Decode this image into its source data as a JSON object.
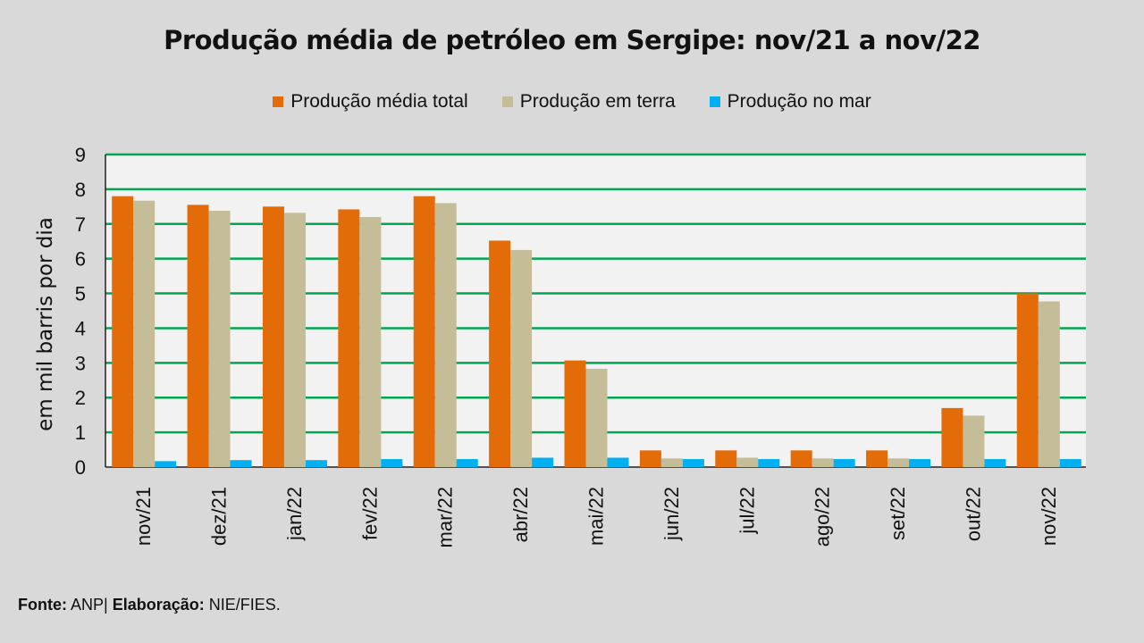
{
  "chart_data": {
    "type": "bar",
    "title": "Produção média de petróleo em Sergipe:  nov/21 a nov/22",
    "ylabel": "em mil barris por dia",
    "xlabel": "",
    "ylim": [
      0,
      9
    ],
    "yticks": [
      0,
      1,
      2,
      3,
      4,
      5,
      6,
      7,
      8,
      9
    ],
    "grid": true,
    "legend_position": "top",
    "categories": [
      "nov/21",
      "dez/21",
      "jan/22",
      "fev/22",
      "mar/22",
      "abr/22",
      "mai/22",
      "jun/22",
      "jul/22",
      "ago/22",
      "set/22",
      "out/22",
      "nov/22"
    ],
    "series": [
      {
        "name": "Produção média total",
        "color": "#e36c09",
        "values": [
          7.8,
          7.55,
          7.5,
          7.42,
          7.8,
          6.52,
          3.07,
          0.48,
          0.48,
          0.48,
          0.48,
          1.7,
          5.0
        ]
      },
      {
        "name": "Produção em terra",
        "color": "#c4bd97",
        "values": [
          7.67,
          7.38,
          7.32,
          7.2,
          7.6,
          6.25,
          2.83,
          0.25,
          0.27,
          0.25,
          0.25,
          1.48,
          4.77
        ]
      },
      {
        "name": "Produção no mar",
        "color": "#00b0f0",
        "values": [
          0.17,
          0.2,
          0.2,
          0.23,
          0.23,
          0.27,
          0.27,
          0.23,
          0.23,
          0.23,
          0.23,
          0.23,
          0.23
        ]
      }
    ]
  },
  "colors": {
    "gridline": "#00a651",
    "plot_background": "#f2f2f2",
    "page_background": "#d9d9d9"
  },
  "footer": {
    "source_label": "Fonte:",
    "source_value": "ANP|",
    "elaboration_label": "Elaboração:",
    "elaboration_value": "NIE/FIES."
  }
}
